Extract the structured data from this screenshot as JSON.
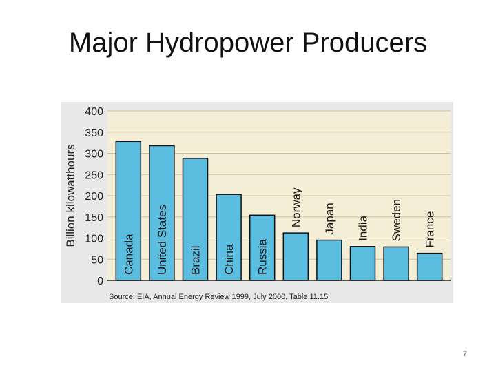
{
  "slide": {
    "title": "Major Hydropower Producers",
    "page_number": "7"
  },
  "colors": {
    "bar_fill": "#5bbde0",
    "bar_stroke": "#111111",
    "plot_bg": "#f4eed6",
    "grid": "#c9c0a4",
    "chart_bg": "#e8e8e8"
  },
  "chart_data": {
    "type": "bar",
    "title": "",
    "xlabel": "",
    "ylabel": "Billion kilowatthours",
    "ylim": [
      0,
      400
    ],
    "yticks": [
      0,
      50,
      100,
      150,
      200,
      250,
      300,
      350,
      400
    ],
    "grid": true,
    "categories": [
      "Canada",
      "United States",
      "Brazil",
      "China",
      "Russia",
      "Norway",
      "Japan",
      "India",
      "Sweden",
      "France"
    ],
    "values": [
      328,
      318,
      288,
      203,
      154,
      112,
      95,
      80,
      79,
      64
    ],
    "source": "Source: EIA, Annual Energy Review 1999, July 2000, Table 11.15"
  }
}
